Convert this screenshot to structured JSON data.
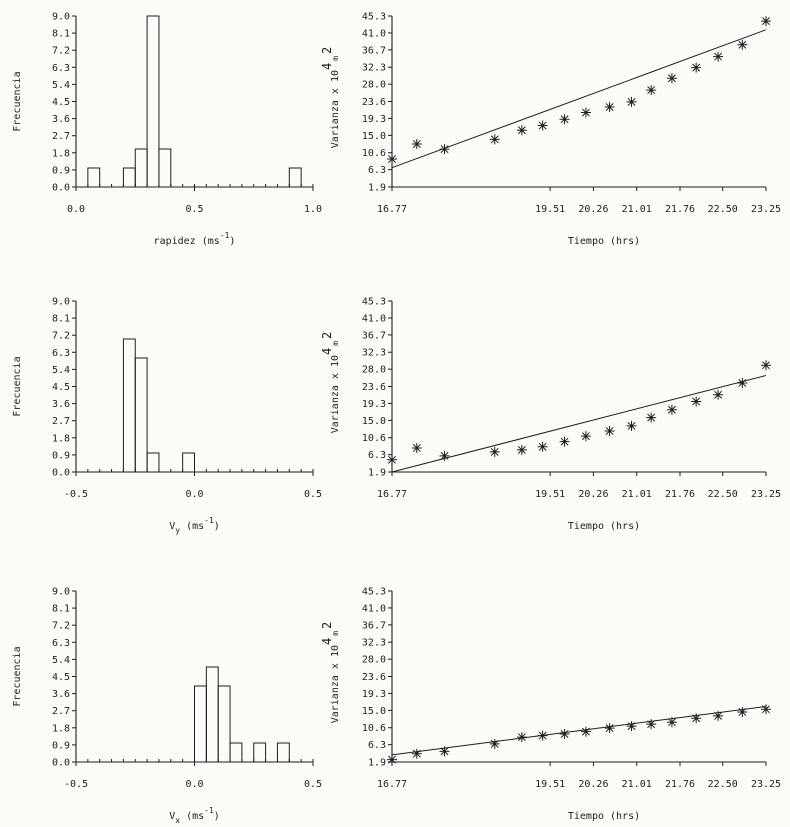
{
  "chart_data": [
    {
      "type": "bar",
      "ylabel": "Frecuencia",
      "xlabel": "rapidez (ms⁻¹)",
      "xlabel_main": "rapidez",
      "xlabel_unit": "(ms",
      "xlabel_sup": "-1",
      "xlabel_close": ")",
      "xlim": [
        0.0,
        1.0
      ],
      "ylim": [
        0.0,
        9.0
      ],
      "xticks": [
        0.0,
        0.5,
        1.0
      ],
      "xtick_labels": [
        "0.0",
        "0.5",
        "1.0"
      ],
      "yticks": [
        0.0,
        0.9,
        1.8,
        2.7,
        3.6,
        4.5,
        5.4,
        6.3,
        7.2,
        8.1,
        9.0
      ],
      "ytick_labels": [
        "0.0",
        "0.9",
        "1.8",
        "2.7",
        "3.6",
        "4.5",
        "5.4",
        "6.3",
        "7.2",
        "8.1",
        "9.0"
      ],
      "bin_width": 0.05,
      "bars": [
        {
          "x": 0.05,
          "value": 1
        },
        {
          "x": 0.2,
          "value": 1
        },
        {
          "x": 0.25,
          "value": 2
        },
        {
          "x": 0.3,
          "value": 9
        },
        {
          "x": 0.35,
          "value": 2
        },
        {
          "x": 0.9,
          "value": 1
        }
      ]
    },
    {
      "type": "scatter",
      "ylabel": "Varianza x 10⁴ m²",
      "ylabel_main": "Varianza x 10",
      "ylabel_sup": "4",
      "ylabel_unit": "m",
      "ylabel_sup2": "2",
      "xlabel": "Tiempo (hrs)",
      "xlim": [
        16.77,
        23.25
      ],
      "ylim": [
        1.9,
        45.3
      ],
      "xticks": [
        16.77,
        19.51,
        20.26,
        21.01,
        21.76,
        22.5,
        23.25
      ],
      "xtick_labels": [
        "16.77",
        "19.51",
        "20.26",
        "21.01",
        "21.76",
        "22.50",
        "23.25"
      ],
      "yticks": [
        1.9,
        6.3,
        10.6,
        15.0,
        19.3,
        23.6,
        28.0,
        32.3,
        36.7,
        41.0,
        45.3
      ],
      "ytick_labels": [
        "1.9",
        "6.3",
        "10.6",
        "15.0",
        "19.3",
        "23.6",
        "28.0",
        "32.3",
        "36.7",
        "41.0",
        "45.3"
      ],
      "points": {
        "x": [
          16.77,
          17.2,
          17.68,
          18.55,
          19.02,
          19.38,
          19.76,
          20.13,
          20.54,
          20.92,
          21.26,
          21.62,
          22.04,
          22.42,
          22.84,
          23.25
        ],
        "y": [
          9.0,
          12.8,
          11.5,
          14.0,
          16.3,
          17.5,
          19.1,
          20.8,
          22.2,
          23.5,
          26.5,
          29.5,
          32.2,
          35.0,
          38.0,
          44.0
        ]
      },
      "fit_line": {
        "x": [
          16.77,
          23.25
        ],
        "y": [
          6.8,
          41.8
        ]
      }
    },
    {
      "type": "bar",
      "ylabel": "Frecuencia",
      "xlabel": "Vy (ms⁻¹)",
      "xlabel_main": "V",
      "xlabel_sub": "y",
      "xlabel_unit": "(ms",
      "xlabel_sup": "-1",
      "xlabel_close": ")",
      "xlim": [
        -0.5,
        0.5
      ],
      "ylim": [
        0.0,
        9.0
      ],
      "xticks": [
        -0.5,
        0.0,
        0.5
      ],
      "xtick_labels": [
        "-0.5",
        "0.0",
        "0.5"
      ],
      "yticks": [
        0.0,
        0.9,
        1.8,
        2.7,
        3.6,
        4.5,
        5.4,
        6.3,
        7.2,
        8.1,
        9.0
      ],
      "ytick_labels": [
        "0.0",
        "0.9",
        "1.8",
        "2.7",
        "3.6",
        "4.5",
        "5.4",
        "6.3",
        "7.2",
        "8.1",
        "9.0"
      ],
      "bin_width": 0.05,
      "bars": [
        {
          "x": -0.3,
          "value": 7
        },
        {
          "x": -0.25,
          "value": 6
        },
        {
          "x": -0.2,
          "value": 1
        },
        {
          "x": -0.05,
          "value": 1
        }
      ]
    },
    {
      "type": "scatter",
      "ylabel": "Varianza x 10⁴ m²",
      "ylabel_main": "Varianza x 10",
      "ylabel_sup": "4",
      "ylabel_unit": "m",
      "ylabel_sup2": "2",
      "xlabel": "Tiempo (hrs)",
      "xlim": [
        16.77,
        23.25
      ],
      "ylim": [
        1.9,
        45.3
      ],
      "xticks": [
        16.77,
        19.51,
        20.26,
        21.01,
        21.76,
        22.5,
        23.25
      ],
      "xtick_labels": [
        "16.77",
        "19.51",
        "20.26",
        "21.01",
        "21.76",
        "22.50",
        "23.25"
      ],
      "yticks": [
        1.9,
        6.3,
        10.6,
        15.0,
        19.3,
        23.6,
        28.0,
        32.3,
        36.7,
        41.0,
        45.3
      ],
      "ytick_labels": [
        "1.9",
        "6.3",
        "10.6",
        "15.0",
        "19.3",
        "23.6",
        "28.0",
        "32.3",
        "36.7",
        "41.0",
        "45.3"
      ],
      "points": {
        "x": [
          16.77,
          17.2,
          17.68,
          18.55,
          19.02,
          19.38,
          19.76,
          20.13,
          20.54,
          20.92,
          21.26,
          21.62,
          22.04,
          22.42,
          22.84,
          23.25
        ],
        "y": [
          5.0,
          8.0,
          6.0,
          7.0,
          7.5,
          8.3,
          9.6,
          11.0,
          12.3,
          13.6,
          15.7,
          17.7,
          19.8,
          21.5,
          24.5,
          29.0
        ]
      },
      "fit_line": {
        "x": [
          16.77,
          23.25
        ],
        "y": [
          1.9,
          26.4
        ]
      }
    },
    {
      "type": "bar",
      "ylabel": "Frecuencia",
      "xlabel": "Vx (ms⁻¹)",
      "xlabel_main": "V",
      "xlabel_sub": "x",
      "xlabel_unit": "(ms",
      "xlabel_sup": "-1",
      "xlabel_close": ")",
      "xlim": [
        -0.5,
        0.5
      ],
      "ylim": [
        0.0,
        9.0
      ],
      "xticks": [
        -0.5,
        0.0,
        0.5
      ],
      "xtick_labels": [
        "-0.5",
        "0.0",
        "0.5"
      ],
      "yticks": [
        0.0,
        0.9,
        1.8,
        2.7,
        3.6,
        4.5,
        5.4,
        6.3,
        7.2,
        8.1,
        9.0
      ],
      "ytick_labels": [
        "0.0",
        "0.9",
        "1.8",
        "2.7",
        "3.6",
        "4.5",
        "5.4",
        "6.3",
        "7.2",
        "8.1",
        "9.0"
      ],
      "bin_width": 0.05,
      "bars": [
        {
          "x": 0.0,
          "value": 4
        },
        {
          "x": 0.05,
          "value": 5
        },
        {
          "x": 0.1,
          "value": 4
        },
        {
          "x": 0.15,
          "value": 1
        },
        {
          "x": 0.25,
          "value": 1
        },
        {
          "x": 0.35,
          "value": 1
        }
      ]
    },
    {
      "type": "scatter",
      "ylabel": "Varianza x 10⁴ m²",
      "ylabel_main": "Varianza x 10",
      "ylabel_sup": "4",
      "ylabel_unit": "m",
      "ylabel_sup2": "2",
      "xlabel": "Tiempo (hrs)",
      "xlim": [
        16.77,
        23.25
      ],
      "ylim": [
        1.9,
        45.3
      ],
      "xticks": [
        16.77,
        19.51,
        20.26,
        21.01,
        21.76,
        22.5,
        23.25
      ],
      "xtick_labels": [
        "16.77",
        "19.51",
        "20.26",
        "21.01",
        "21.76",
        "22.50",
        "23.25"
      ],
      "yticks": [
        1.9,
        6.3,
        10.6,
        15.0,
        19.3,
        23.6,
        28.0,
        32.3,
        36.7,
        41.0,
        45.3
      ],
      "ytick_labels": [
        "1.9",
        "6.3",
        "10.6",
        "15.0",
        "19.3",
        "23.6",
        "28.0",
        "32.3",
        "36.7",
        "41.0",
        "45.3"
      ],
      "points": {
        "x": [
          16.77,
          17.2,
          17.68,
          18.55,
          19.02,
          19.38,
          19.76,
          20.13,
          20.54,
          20.92,
          21.26,
          21.62,
          22.04,
          22.42,
          22.84,
          23.25
        ],
        "y": [
          2.5,
          4.0,
          4.6,
          6.5,
          8.2,
          8.6,
          9.0,
          9.6,
          10.5,
          11.0,
          11.5,
          12.0,
          13.0,
          13.6,
          14.6,
          15.3
        ]
      },
      "fit_line": {
        "x": [
          16.77,
          23.25
        ],
        "y": [
          3.7,
          16.0
        ]
      }
    }
  ]
}
